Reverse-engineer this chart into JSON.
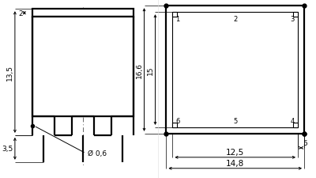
{
  "bg_color": "#ffffff",
  "line_color": "#000000",
  "font_size_dim": 6.5,
  "font_size_pin": 6.0,
  "lw_thick": 1.6,
  "lw_thin": 0.8,
  "lw_dim": 0.7,
  "lw_ext": 0.5,
  "dims_left": {
    "d135_label": "13,5",
    "d2_label": "2",
    "d35_label": "3,5",
    "d06_label": "Ø 0,6"
  },
  "dims_right": {
    "d166_label": "16,6",
    "d15_label": "15",
    "d5_label": "5",
    "d125_label": "12,5",
    "d148_label": "14,8"
  }
}
